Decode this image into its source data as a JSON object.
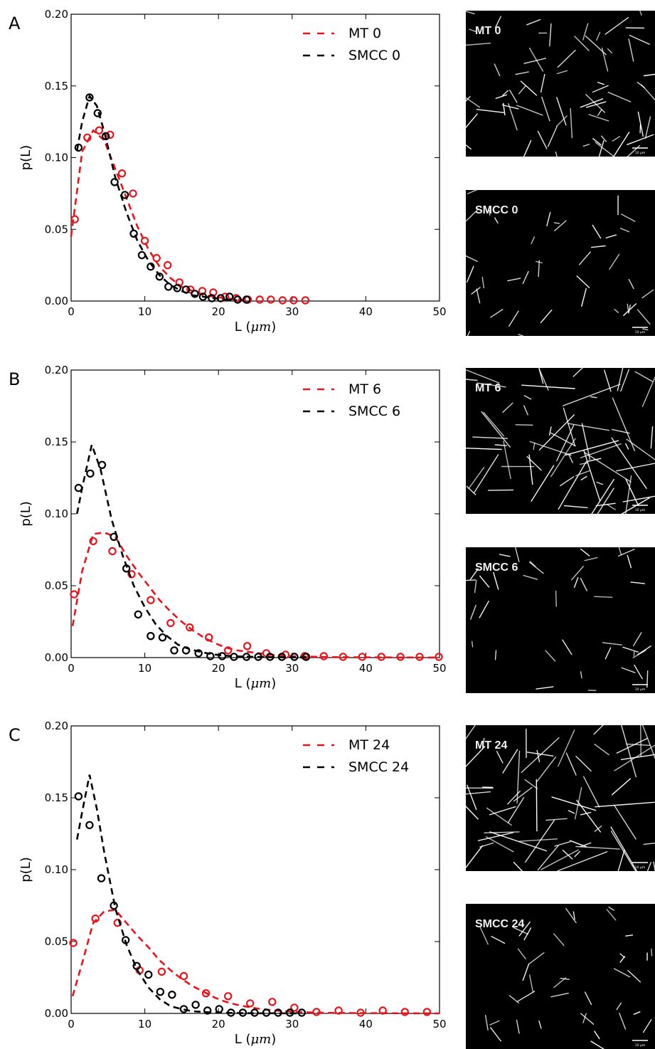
{
  "chart_data": [
    {
      "type": "line",
      "panel_label": "A",
      "xlabel": "L",
      "xlabel_unit": "μm",
      "ylabel": "p(L)",
      "xlim": [
        0,
        50
      ],
      "ylim": [
        0,
        0.2
      ],
      "xticks": [
        "0",
        "10",
        "20",
        "30",
        "40",
        "50"
      ],
      "yticks": [
        "0.00",
        "0.05",
        "0.10",
        "0.15",
        "0.20"
      ],
      "legend_position": "top-right",
      "series": [
        {
          "name": "MT 0",
          "color": "#e8141c",
          "fit_x": [
            0,
            1.5,
            3,
            4.5,
            6,
            7.5,
            9,
            10.5,
            12,
            13.5,
            15,
            16.5,
            18,
            19.5,
            21,
            22.5,
            24
          ],
          "fit_y": [
            0.045,
            0.104,
            0.119,
            0.112,
            0.092,
            0.072,
            0.052,
            0.036,
            0.024,
            0.016,
            0.01,
            0.007,
            0.004,
            0.003,
            0.002,
            0.001,
            0.0008
          ],
          "points_x": [
            0.5,
            2.2,
            3.8,
            5.3,
            6.9,
            8.4,
            10.0,
            11.6,
            13.1,
            14.7,
            16.2,
            17.8,
            19.3,
            20.9,
            22.4,
            24.0,
            25.6,
            27.1,
            28.7,
            30.2,
            31.8
          ],
          "points_y": [
            0.057,
            0.114,
            0.119,
            0.116,
            0.089,
            0.075,
            0.042,
            0.03,
            0.025,
            0.013,
            0.008,
            0.007,
            0.006,
            0.003,
            0.002,
            0.001,
            0.001,
            0.001,
            0.0005,
            0.0005,
            0.0005
          ]
        },
        {
          "name": "SMCC 0",
          "color": "#000000",
          "fit_x": [
            0.8,
            1.5,
            2.5,
            3.5,
            4.5,
            6,
            7.5,
            9,
            10.5,
            12,
            13.5,
            15,
            16.5,
            18,
            19.5,
            21,
            22.5
          ],
          "fit_y": [
            0.105,
            0.125,
            0.143,
            0.136,
            0.118,
            0.086,
            0.062,
            0.042,
            0.028,
            0.018,
            0.011,
            0.007,
            0.004,
            0.003,
            0.002,
            0.001,
            0.0006
          ],
          "points_x": [
            1.0,
            2.5,
            3.6,
            4.7,
            5.9,
            7.3,
            8.5,
            9.6,
            10.8,
            12.0,
            13.2,
            14.4,
            15.6,
            16.8,
            17.9,
            19.1,
            20.3,
            21.5,
            22.6,
            23.8
          ],
          "points_y": [
            0.107,
            0.142,
            0.131,
            0.115,
            0.083,
            0.074,
            0.047,
            0.032,
            0.024,
            0.017,
            0.01,
            0.009,
            0.008,
            0.005,
            0.003,
            0.002,
            0.002,
            0.003,
            0.001,
            0.001
          ]
        }
      ]
    },
    {
      "type": "line",
      "panel_label": "B",
      "xlabel": "L",
      "xlabel_unit": "μm",
      "ylabel": "p(L)",
      "xlim": [
        0,
        50
      ],
      "ylim": [
        0,
        0.2
      ],
      "xticks": [
        "0",
        "10",
        "20",
        "30",
        "40",
        "50"
      ],
      "yticks": [
        "0.00",
        "0.05",
        "0.10",
        "0.15",
        "0.20"
      ],
      "legend_position": "top-right",
      "series": [
        {
          "name": "MT 6",
          "color": "#e8141c",
          "fit_x": [
            0.2,
            1.5,
            3,
            4.5,
            6,
            7.5,
            9,
            10.5,
            12,
            13.5,
            15,
            16.5,
            18,
            19.5,
            21,
            22.5,
            24,
            25.5,
            27,
            28.5,
            30,
            31.5,
            33,
            36,
            40,
            45,
            50
          ],
          "fit_y": [
            0.022,
            0.06,
            0.086,
            0.087,
            0.084,
            0.071,
            0.06,
            0.05,
            0.04,
            0.032,
            0.025,
            0.019,
            0.014,
            0.01,
            0.007,
            0.005,
            0.004,
            0.003,
            0.002,
            0.0015,
            0.001,
            0.0008,
            0.0006,
            0.0003,
            0.0002,
            0.0001,
            0.0
          ],
          "points_x": [
            0.4,
            3.0,
            5.6,
            8.2,
            10.8,
            13.5,
            16.1,
            18.7,
            21.3,
            23.9,
            26.5,
            29.1,
            31.7,
            34.3,
            36.9,
            39.5,
            42.1,
            44.7,
            47.3,
            49.9
          ],
          "points_y": [
            0.044,
            0.081,
            0.074,
            0.058,
            0.04,
            0.024,
            0.021,
            0.014,
            0.005,
            0.008,
            0.003,
            0.002,
            0.001,
            0.001,
            0.0005,
            0.0005,
            0.0005,
            0.0005,
            0.0005,
            0.0005
          ]
        },
        {
          "name": "SMCC 6",
          "color": "#000000",
          "fit_x": [
            0.8,
            1.5,
            2.8,
            4.0,
            5.5,
            7,
            8.5,
            10,
            11.5,
            13,
            14.5,
            16,
            17.5,
            19,
            20.5,
            22,
            23.5,
            25,
            27,
            30,
            32
          ],
          "fit_y": [
            0.1,
            0.118,
            0.148,
            0.131,
            0.096,
            0.071,
            0.05,
            0.035,
            0.023,
            0.015,
            0.009,
            0.006,
            0.004,
            0.0025,
            0.0015,
            0.001,
            0.0007,
            0.0005,
            0.0003,
            0.0002,
            0.0001
          ],
          "points_x": [
            1.0,
            2.6,
            4.2,
            5.8,
            7.5,
            9.1,
            10.8,
            12.4,
            14.0,
            15.6,
            17.3,
            18.9,
            20.5,
            22.1,
            23.8,
            25.4,
            27.0,
            28.6,
            30.3,
            31.9
          ],
          "points_y": [
            0.118,
            0.128,
            0.134,
            0.084,
            0.062,
            0.03,
            0.015,
            0.014,
            0.005,
            0.005,
            0.003,
            0.001,
            0.001,
            0.0005,
            0.0005,
            0.0005,
            0.0005,
            0.0005,
            0.0005,
            0.0005
          ]
        }
      ]
    },
    {
      "type": "line",
      "panel_label": "C",
      "xlabel": "L",
      "xlabel_unit": "μm",
      "ylabel": "p(L)",
      "xlim": [
        0,
        50
      ],
      "ylim": [
        0,
        0.2
      ],
      "xticks": [
        "0",
        "10",
        "20",
        "30",
        "40",
        "50"
      ],
      "yticks": [
        "0.00",
        "0.05",
        "0.10",
        "0.15",
        "0.20"
      ],
      "legend_position": "top-right",
      "series": [
        {
          "name": "MT 24",
          "color": "#e8141c",
          "fit_x": [
            0.2,
            1.5,
            3.0,
            4.5,
            6.0,
            7.5,
            9,
            10.5,
            12,
            13.5,
            15,
            16.5,
            18,
            19.5,
            21,
            22.5,
            24,
            25.5,
            27,
            28.5,
            30,
            32,
            35,
            40,
            45,
            50
          ],
          "fit_y": [
            0.012,
            0.035,
            0.063,
            0.071,
            0.072,
            0.063,
            0.054,
            0.046,
            0.037,
            0.03,
            0.024,
            0.019,
            0.015,
            0.011,
            0.008,
            0.006,
            0.0045,
            0.0032,
            0.0024,
            0.0017,
            0.0012,
            0.0008,
            0.0004,
            0.0002,
            0.0001,
            0.0
          ],
          "points_x": [
            0.3,
            3.3,
            6.3,
            9.3,
            12.3,
            15.3,
            18.3,
            21.3,
            24.3,
            27.3,
            30.3,
            33.3,
            36.3,
            39.3,
            42.3,
            45.3,
            48.3
          ],
          "points_y": [
            0.049,
            0.066,
            0.063,
            0.03,
            0.029,
            0.026,
            0.014,
            0.012,
            0.007,
            0.008,
            0.004,
            0.001,
            0.002,
            0.0005,
            0.002,
            0.001,
            0.001
          ],
          "extra_points_x": [
            12.2,
            15.6,
            18.8,
            21.9,
            25.1,
            28.3,
            31.6,
            34.8,
            38.0,
            41.2,
            44.4,
            47.6,
            50.0
          ],
          "extra_points_y": [
            0.03,
            0.026,
            0.014,
            0.012,
            0.007,
            0.008,
            0.004,
            0.001,
            0.003,
            0.0005,
            0.002,
            0.001,
            0.001
          ]
        },
        {
          "name": "SMCC 24",
          "color": "#000000",
          "fit_x": [
            0.8,
            1.5,
            2.5,
            3.5,
            4.5,
            6,
            7.5,
            9,
            10.5,
            12,
            13.5,
            15,
            16.5,
            18,
            19.5,
            21,
            23,
            25,
            28,
            31
          ],
          "fit_y": [
            0.121,
            0.14,
            0.166,
            0.142,
            0.112,
            0.073,
            0.048,
            0.03,
            0.018,
            0.01,
            0.005,
            0.003,
            0.0015,
            0.001,
            0.0006,
            0.0004,
            0.0002,
            0.0001,
            0.0001,
            0.0
          ],
          "points_x": [
            1.0,
            2.5,
            4.1,
            5.8,
            7.4,
            8.9,
            10.5,
            12.1,
            13.7,
            15.3,
            16.9,
            18.5,
            20.1,
            21.7,
            23.3,
            24.9,
            26.5,
            28.1,
            29.7,
            31.3
          ],
          "points_y": [
            0.151,
            0.131,
            0.094,
            0.075,
            0.051,
            0.033,
            0.027,
            0.015,
            0.013,
            0.003,
            0.006,
            0.002,
            0.003,
            0.0005,
            0.0005,
            0.0005,
            0.0005,
            0.0005,
            0.0005,
            0.0005
          ]
        }
      ]
    }
  ],
  "micrographs": [
    {
      "label": "MT 0"
    },
    {
      "label": "SMCC 0"
    },
    {
      "label": "MT 6"
    },
    {
      "label": "SMCC 6"
    },
    {
      "label": "MT 24"
    },
    {
      "label": "SMCC 24"
    }
  ],
  "scale_bar_label": "10 μm",
  "colors": {
    "mt": "#e8141c",
    "smcc": "#000000",
    "micrograph_bg": "#000000",
    "fiber": "#ffffff"
  }
}
